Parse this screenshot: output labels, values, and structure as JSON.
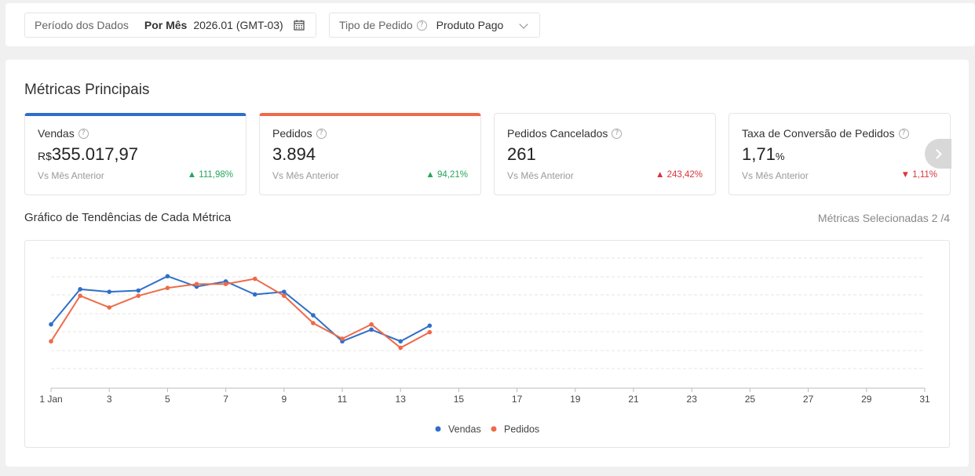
{
  "filters": {
    "period_label": "Período dos Dados",
    "period_mode": "Por Mês",
    "period_value": "2026.01 (GMT-03)",
    "type_label": "Tipo de Pedido",
    "type_value": "Produto Pago"
  },
  "main": {
    "title": "Métricas Principais",
    "cards": [
      {
        "label": "Vendas",
        "currency": "R$",
        "value": "355.017,97",
        "compare": "Vs Mês Anterior",
        "delta": "▲ 111,98%",
        "selected": "blue"
      },
      {
        "label": "Pedidos",
        "value": "3.894",
        "compare": "Vs Mês Anterior",
        "delta": "▲ 94,21%",
        "selected": "orange"
      },
      {
        "label": "Pedidos Cancelados",
        "value": "261",
        "compare": "Vs Mês Anterior",
        "delta": "▲ 243,42%"
      },
      {
        "label": "Taxa de Conversão de Pedidos",
        "value": "1,71",
        "unit": "%",
        "compare": "Vs Mês Anterior",
        "delta": "▼ 1,11%"
      }
    ],
    "trend_title": "Gráfico de Tendências de Cada Métrica",
    "selected_metrics": "Métricas Selecionadas 2 /4"
  },
  "colors": {
    "vendas": "#2f6fc9",
    "pedidos": "#ee6a48"
  },
  "chart_data": {
    "type": "line",
    "x_tick_labels": [
      "1 Jan",
      "3",
      "5",
      "7",
      "9",
      "11",
      "13",
      "15",
      "17",
      "19",
      "21",
      "23",
      "25",
      "27",
      "29",
      "31"
    ],
    "x_ticks": [
      1,
      3,
      5,
      7,
      9,
      11,
      13,
      15,
      17,
      19,
      21,
      23,
      25,
      27,
      29,
      31
    ],
    "xlim": [
      1,
      31
    ],
    "grid": true,
    "legend_position": "bottom",
    "series": [
      {
        "name": "Vendas",
        "color": "#2f6fc9",
        "x": [
          1,
          2,
          3,
          4,
          5,
          6,
          7,
          8,
          9,
          10,
          11,
          12,
          13,
          14
        ],
        "values": [
          0.49,
          0.76,
          0.74,
          0.75,
          0.86,
          0.78,
          0.82,
          0.72,
          0.74,
          0.56,
          0.36,
          0.45,
          0.36,
          0.48
        ]
      },
      {
        "name": "Pedidos",
        "color": "#ee6a48",
        "x": [
          1,
          2,
          3,
          4,
          5,
          6,
          7,
          8,
          9,
          10,
          11,
          12,
          13,
          14
        ],
        "values": [
          0.36,
          0.71,
          0.62,
          0.71,
          0.77,
          0.8,
          0.8,
          0.84,
          0.71,
          0.5,
          0.38,
          0.49,
          0.31,
          0.43
        ]
      }
    ]
  }
}
